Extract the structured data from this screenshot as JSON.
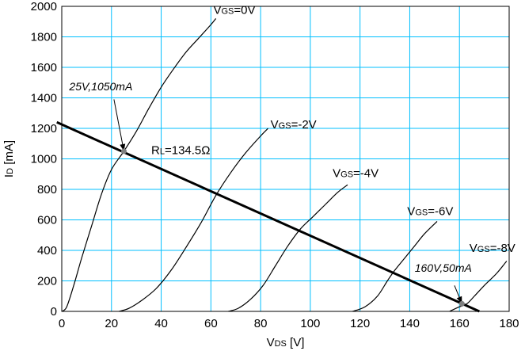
{
  "chart_data": {
    "type": "line",
    "xlabel_main": "V",
    "xlabel_sub": "DS",
    "xlabel_unit": " [V]",
    "ylabel_main": "I",
    "ylabel_sub": "D",
    "ylabel_unit": " [mA]",
    "xlim": [
      0,
      180
    ],
    "ylim": [
      0,
      2000
    ],
    "xticks": [
      0,
      20,
      40,
      60,
      80,
      100,
      120,
      140,
      160,
      180
    ],
    "yticks": [
      0,
      200,
      400,
      600,
      800,
      1000,
      1200,
      1400,
      1600,
      1800,
      2000
    ],
    "grid": true,
    "series": [
      {
        "label_main": "V",
        "label_sub": "GS",
        "label_value": "=0V",
        "label_at": [
          61,
          1950
        ],
        "x": [
          0,
          2,
          5,
          8,
          12,
          16,
          20,
          25,
          30,
          35,
          40,
          45,
          50,
          55,
          60,
          62
        ],
        "y": [
          0,
          30,
          180,
          350,
          560,
          770,
          930,
          1050,
          1180,
          1330,
          1470,
          1590,
          1700,
          1790,
          1880,
          1920
        ]
      },
      {
        "label_main": "V",
        "label_sub": "GS",
        "label_value": "=-2V",
        "label_at": [
          84,
          1200
        ],
        "x": [
          23,
          27,
          32,
          38,
          44,
          50,
          56,
          62,
          68,
          74,
          80,
          83
        ],
        "y": [
          0,
          20,
          70,
          150,
          270,
          420,
          580,
          760,
          910,
          1040,
          1150,
          1200
        ]
      },
      {
        "label_main": "V",
        "label_sub": "GS",
        "label_value": "=-4V",
        "label_at": [
          109,
          880
        ],
        "x": [
          67,
          71,
          76,
          81,
          86,
          91,
          96,
          101,
          106,
          111,
          115
        ],
        "y": [
          0,
          20,
          80,
          170,
          300,
          430,
          540,
          620,
          700,
          780,
          830
        ]
      },
      {
        "label_main": "V",
        "label_sub": "GS",
        "label_value": "=-6V",
        "label_at": [
          139,
          630
        ],
        "x": [
          117,
          122,
          127,
          131,
          134,
          138,
          142,
          146,
          151
        ],
        "y": [
          0,
          30,
          100,
          200,
          270,
          350,
          430,
          510,
          590
        ]
      },
      {
        "label_main": "V",
        "label_sub": "GS",
        "label_value": "=-8V",
        "label_at": [
          164,
          390
        ],
        "x": [
          156,
          160,
          163,
          166,
          170,
          175,
          179
        ],
        "y": [
          0,
          30,
          50,
          100,
          170,
          250,
          330
        ]
      }
    ],
    "load_line": {
      "label_main": "R",
      "label_sub": "L",
      "label_value": "=134.5Ω",
      "label_at": [
        36,
        1030
      ],
      "x": [
        -2,
        168
      ],
      "y": [
        1240,
        0
      ]
    },
    "operating_points": [
      {
        "label": "25V,1050mA",
        "x": 25,
        "y": 1050,
        "label_at": [
          3,
          1450
        ],
        "arrow_from": [
          21,
          1390
        ]
      },
      {
        "label": "160V,50mA",
        "x": 161,
        "y": 50,
        "label_at": [
          142,
          260
        ],
        "arrow_from": [
          158,
          170
        ]
      }
    ]
  }
}
